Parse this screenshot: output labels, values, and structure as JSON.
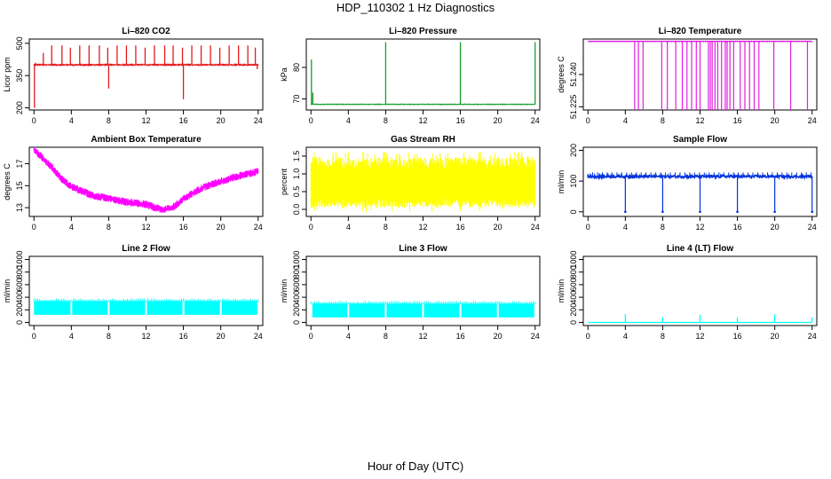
{
  "page": {
    "title": "HDP_110302  1 Hz Diagnostics",
    "xlabel": "Hour of Day (UTC)"
  },
  "chart_data": [
    {
      "type": "line",
      "title": "Li–820 CO2",
      "ylabel": "Licor ppm",
      "color": "#e41a1c",
      "xlim": [
        -0.5,
        24.5
      ],
      "ylim": [
        190,
        520
      ],
      "xticks": [
        0,
        4,
        8,
        12,
        16,
        20,
        24
      ],
      "xtick_labels": [
        "0",
        "4",
        "8",
        "12",
        "16",
        "20",
        "24"
      ],
      "yticks": [
        200,
        350,
        500
      ],
      "ytick_labels": [
        "200",
        "350",
        "500"
      ],
      "series": [
        {
          "name": "CO2",
          "baseline": 400,
          "noise": 6,
          "spikes": [
            [
              0.05,
              200
            ],
            [
              0.15,
              410
            ],
            [
              1.0,
              455
            ],
            [
              1.9,
              490
            ],
            [
              3.0,
              490
            ],
            [
              3.9,
              480
            ],
            [
              4.9,
              490
            ],
            [
              5.9,
              490
            ],
            [
              7.0,
              490
            ],
            [
              7.9,
              480
            ],
            [
              8.0,
              290
            ],
            [
              8.9,
              490
            ],
            [
              9.9,
              490
            ],
            [
              10.9,
              490
            ],
            [
              11.9,
              480
            ],
            [
              12.9,
              490
            ],
            [
              14.0,
              490
            ],
            [
              14.9,
              490
            ],
            [
              15.9,
              480
            ],
            [
              16.0,
              240
            ],
            [
              16.9,
              490
            ],
            [
              17.9,
              490
            ],
            [
              18.9,
              490
            ],
            [
              19.9,
              480
            ],
            [
              20.9,
              490
            ],
            [
              21.9,
              490
            ],
            [
              22.9,
              490
            ],
            [
              23.7,
              480
            ],
            [
              23.9,
              380
            ]
          ]
        }
      ]
    },
    {
      "type": "line",
      "title": "Li–820 Pressure",
      "ylabel": "kPa",
      "color": "#1a9e2b",
      "xlim": [
        -0.5,
        24.5
      ],
      "ylim": [
        66.5,
        89
      ],
      "xticks": [
        0,
        4,
        8,
        12,
        16,
        20,
        24
      ],
      "xtick_labels": [
        "0",
        "4",
        "8",
        "12",
        "16",
        "20",
        "24"
      ],
      "yticks": [
        70,
        80
      ],
      "ytick_labels": [
        "70",
        "80"
      ],
      "series": [
        {
          "name": "Pressure",
          "baseline": 68.3,
          "noise": 0.25,
          "spikes": [
            [
              0.05,
              82.5
            ],
            [
              0.2,
              72
            ],
            [
              8.0,
              88
            ],
            [
              16.0,
              88
            ],
            [
              24.0,
              88
            ]
          ]
        }
      ]
    },
    {
      "type": "line",
      "title": "Li–820 Temperature",
      "ylabel": "degrees C",
      "color": "#e020e0",
      "xlim": [
        -0.5,
        24.5
      ],
      "ylim": [
        51.2235,
        51.2565
      ],
      "xticks": [
        0,
        4,
        8,
        12,
        16,
        20,
        24
      ],
      "xtick_labels": [
        "0",
        "4",
        "8",
        "12",
        "16",
        "20",
        "24"
      ],
      "yticks": [
        51.225,
        51.24
      ],
      "ytick_labels": [
        "51.225",
        "51.240"
      ],
      "series": [
        {
          "name": "Temperature",
          "baseline": 51.2555,
          "noise": 0,
          "drops": [
            5.0,
            5.4,
            5.9,
            7.9,
            8.5,
            9.4,
            10.1,
            10.6,
            11.1,
            11.6,
            12.0,
            12.9,
            13.1,
            13.3,
            13.6,
            13.9,
            14.3,
            14.7,
            14.9,
            15.2,
            15.6,
            16.3,
            16.8,
            17.3,
            17.8,
            18.3,
            19.9,
            21.7,
            23.5
          ],
          "drop_to": 51.2235
        }
      ]
    },
    {
      "type": "line",
      "title": "Ambient Box Temperature",
      "ylabel": "degrees C",
      "color": "#ff00ff",
      "xlim": [
        -0.5,
        24.5
      ],
      "ylim": [
        12.2,
        18.5
      ],
      "xticks": [
        0,
        4,
        8,
        12,
        16,
        20,
        24
      ],
      "xtick_labels": [
        "0",
        "4",
        "8",
        "12",
        "16",
        "20",
        "24"
      ],
      "yticks": [
        13,
        15,
        17
      ],
      "ytick_labels": [
        "13",
        "15",
        "17"
      ],
      "series": [
        {
          "name": "Box Temp",
          "noise": 0.35,
          "x": [
            0,
            1,
            2,
            3,
            4,
            6,
            8,
            10,
            12,
            13,
            14,
            15,
            16,
            18,
            20,
            22,
            24
          ],
          "y": [
            18.2,
            17.5,
            16.6,
            15.6,
            14.9,
            14.2,
            13.8,
            13.5,
            13.3,
            13.0,
            12.8,
            13.1,
            13.8,
            14.8,
            15.4,
            15.9,
            16.3
          ]
        }
      ]
    },
    {
      "type": "line",
      "title": "Gas Stream RH",
      "ylabel": "percent",
      "color": "#ffff00",
      "xlim": [
        -0.5,
        24.5
      ],
      "ylim": [
        -0.2,
        1.75
      ],
      "xticks": [
        0,
        4,
        8,
        12,
        16,
        20,
        24
      ],
      "xtick_labels": [
        "0",
        "4",
        "8",
        "12",
        "16",
        "20",
        "24"
      ],
      "yticks": [
        0.0,
        0.5,
        1.0,
        1.5
      ],
      "ytick_labels": [
        "0.0",
        "0.5",
        "1.0",
        "1.5"
      ],
      "series": [
        {
          "name": "RH",
          "band_low": 0.3,
          "band_high": 1.3,
          "peak_high": 1.65,
          "peak_low": -0.1
        }
      ]
    },
    {
      "type": "line",
      "title": "Sample Flow",
      "ylabel": "ml/min",
      "color": "#0033dd",
      "xlim": [
        -0.5,
        24.5
      ],
      "ylim": [
        -15,
        210
      ],
      "xticks": [
        0,
        4,
        8,
        12,
        16,
        20,
        24
      ],
      "xtick_labels": [
        "0",
        "4",
        "8",
        "12",
        "16",
        "20",
        "24"
      ],
      "yticks": [
        0,
        100,
        200
      ],
      "ytick_labels": [
        "0",
        "100",
        "200"
      ],
      "series": [
        {
          "name": "Sample Flow",
          "baseline": 115,
          "noise": 4,
          "dips": [
            4,
            8,
            12,
            16,
            20,
            24
          ],
          "dip_to": 0,
          "bump": 128
        }
      ]
    },
    {
      "type": "line",
      "title": "Line 2 Flow",
      "ylabel": "ml/min",
      "color": "#00ffff",
      "xlim": [
        -0.5,
        24.5
      ],
      "ylim": [
        -50,
        1050
      ],
      "xticks": [
        0,
        4,
        8,
        12,
        16,
        20,
        24
      ],
      "xtick_labels": [
        "0",
        "4",
        "8",
        "12",
        "16",
        "20",
        "24"
      ],
      "yticks": [
        0,
        200,
        400,
        600,
        800,
        1000
      ],
      "ytick_labels": [
        "0",
        "200",
        "400",
        "600",
        "800",
        "1000"
      ],
      "series": [
        {
          "name": "Line 2",
          "band_low": 120,
          "band_high": 340,
          "gaps": [
            4,
            8,
            12,
            16,
            20,
            24
          ]
        }
      ]
    },
    {
      "type": "line",
      "title": "Line 3 Flow",
      "ylabel": "ml/min",
      "color": "#00ffff",
      "xlim": [
        -0.5,
        24.5
      ],
      "ylim": [
        -50,
        1050
      ],
      "xticks": [
        0,
        4,
        8,
        12,
        16,
        20,
        24
      ],
      "xtick_labels": [
        "0",
        "4",
        "8",
        "12",
        "16",
        "20",
        "24"
      ],
      "yticks": [
        0,
        200,
        400,
        600,
        800,
        1000
      ],
      "ytick_labels": [
        "0",
        "200",
        "400",
        "600",
        "800",
        "1000"
      ],
      "series": [
        {
          "name": "Line 3",
          "band_low": 80,
          "band_high": 300,
          "gaps": [
            0,
            4,
            8,
            12,
            16,
            20,
            24
          ]
        }
      ]
    },
    {
      "type": "line",
      "title": "Line 4 (LT) Flow",
      "ylabel": "ml/min",
      "color": "#00ffff",
      "xlim": [
        -0.5,
        24.5
      ],
      "ylim": [
        -50,
        1050
      ],
      "xticks": [
        0,
        4,
        8,
        12,
        16,
        20,
        24
      ],
      "xtick_labels": [
        "0",
        "4",
        "8",
        "12",
        "16",
        "20",
        "24"
      ],
      "yticks": [
        0,
        200,
        400,
        600,
        800,
        1000
      ],
      "ytick_labels": [
        "0",
        "200",
        "400",
        "600",
        "800",
        "1000"
      ],
      "series": [
        {
          "name": "Line 4",
          "baseline": 0,
          "spikes": [
            [
              4,
              130
            ],
            [
              8,
              80
            ],
            [
              12,
              120
            ],
            [
              16,
              80
            ],
            [
              20,
              130
            ],
            [
              24,
              80
            ]
          ]
        }
      ]
    }
  ]
}
